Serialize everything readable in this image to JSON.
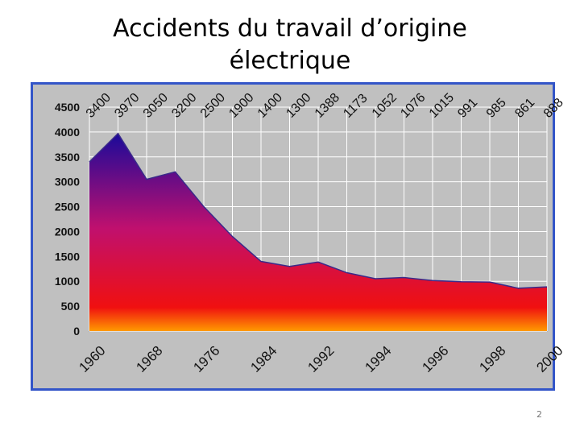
{
  "slide": {
    "title_line1": "Accidents du travail d’origine",
    "title_line2": "électrique",
    "page_number": "2"
  },
  "colors": {
    "frame_border": "#3355c8",
    "plot_background": "#c0c0c0",
    "gradient_top": "#1a0a9a",
    "gradient_mid": "#c0106e",
    "gradient_red": "#f01010",
    "gradient_bottom": "#ff9a00",
    "series_line": "#3a2a8a"
  },
  "chart_data": {
    "type": "area",
    "title": "",
    "xlabel": "",
    "ylabel": "",
    "ylim": [
      0,
      4500
    ],
    "y_ticks": [
      0,
      500,
      1000,
      1500,
      2000,
      2500,
      3000,
      3500,
      4000,
      4500
    ],
    "grid": true,
    "x_tick_labels": [
      "1960",
      "1968",
      "1976",
      "1984",
      "1992",
      "1994",
      "1996",
      "1998",
      "2000"
    ],
    "series": [
      {
        "values": [
          3400,
          3970,
          3050,
          3200,
          2500,
          1900,
          1400,
          1300,
          1388,
          1173,
          1052,
          1076,
          1015,
          991,
          985,
          861,
          888
        ],
        "data_labels": [
          "3400",
          "3970",
          "3050",
          "3200",
          "2500",
          "1900",
          "1400",
          "1300",
          "1388",
          "1173",
          "1052",
          "1076",
          "1015",
          "991",
          "985",
          "861",
          "888"
        ]
      }
    ]
  }
}
